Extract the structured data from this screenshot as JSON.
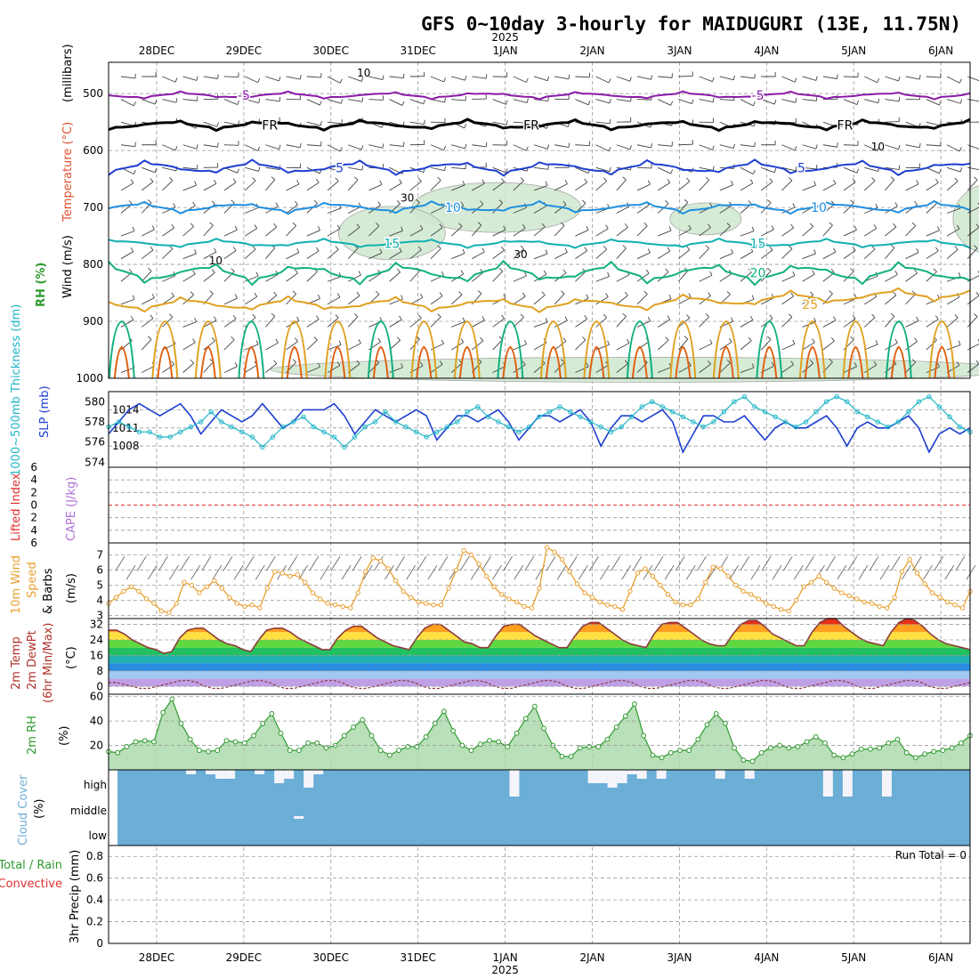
{
  "title": "GFS 0~10day 3-hourly for MAIDUGURI (13E, 11.75N)",
  "colors": {
    "temp_m5": "#8a1aa8",
    "temp_fr": "#000000",
    "temp_5": "#1e3fd0",
    "temp_10": "#1f8fe0",
    "temp_15": "#10b0b0",
    "temp_20": "#10b080",
    "temp_25": "#e0a020",
    "temp_30": "#e06010",
    "rh_fill": "#cfe8d0",
    "rh_line": "#999999",
    "slp": "#1e3fd0",
    "thickness": "#22b5c8",
    "cape": "#b070d8",
    "lifted": "#e03030",
    "wind10": "#e8a030",
    "barb": "#555555",
    "rh2m_line": "#2e9a2e",
    "cloud": "#6baed6",
    "precip_green": "#2e9a2e",
    "precip_red": "#e03030"
  },
  "chart_data": [
    {
      "type": "line",
      "panel": "upper-air",
      "year_label": "2025",
      "top_dates": [
        "28DEC",
        "29DEC",
        "30DEC",
        "31DEC",
        "1JAN",
        "2JAN",
        "3JAN",
        "4JAN",
        "5JAN",
        "6JAN"
      ],
      "yticks": [
        500,
        600,
        700,
        800,
        900,
        1000
      ],
      "ylabel_parts": [
        {
          "text": "Wind (m/s)",
          "color": "#000000"
        },
        {
          "text": "Temperature (°C)",
          "color": "#e05030"
        },
        {
          "text": "(millibars)",
          "color": "#000000"
        },
        {
          "text": "RH (%)",
          "color": "#2e9a2e"
        }
      ],
      "ylim": [
        1000,
        445
      ],
      "isotherms": [
        {
          "name": "-5",
          "label": "-5",
          "base_p": 503,
          "amp": 5,
          "color": "#8a1aa8",
          "labels_at": [
            1,
            6.9
          ]
        },
        {
          "name": "FR",
          "label": "FR",
          "base_p": 555,
          "amp": 7,
          "color": "#000000",
          "labels_at": [
            1.3,
            4.3,
            7.9
          ]
        },
        {
          "name": "5",
          "label": "5",
          "base_p": 630,
          "amp": 10,
          "color": "#1e3fd0",
          "labels_at": [
            2.1,
            7.4
          ]
        },
        {
          "name": "10",
          "label": "10",
          "base_p": 700,
          "amp": 8,
          "color": "#1f8fe0",
          "labels_at": [
            3.4,
            7.6
          ]
        },
        {
          "name": "15",
          "label": "15",
          "base_p": 763,
          "amp": 6,
          "color": "#10b0b0",
          "labels_at": [
            2.7,
            6.9
          ]
        },
        {
          "name": "20",
          "label": "20",
          "base_p": 815,
          "amp": 15,
          "color": "#10b080",
          "labels_at": [
            6.9
          ]
        },
        {
          "name": "25",
          "label": "25",
          "base_p": 870,
          "amp": 10,
          "color": "#e0a020",
          "labels_at": [
            7.5
          ]
        }
      ],
      "rh_labels": [
        {
          "text": "30",
          "x": 2.8,
          "p": 690
        },
        {
          "text": "30",
          "x": 4.1,
          "p": 789
        },
        {
          "text": "10",
          "x": 0.6,
          "p": 800
        },
        {
          "text": "10",
          "x": 2.3,
          "p": 470
        },
        {
          "text": "10",
          "x": 8.2,
          "p": 600
        },
        {
          "text": "30",
          "x": 9.8,
          "p": 630
        }
      ]
    },
    {
      "type": "line",
      "panel": "slp-thickness",
      "left_ticks": [
        580,
        578,
        576,
        574
      ],
      "left_label": "1000~500mb Thickness (dm)",
      "right_ticks": [
        1014,
        1011,
        1008
      ],
      "right_label": "SLP (mb)",
      "slp_ylim": [
        1004.5,
        1017
      ],
      "thick_ylim": [
        573.5,
        581
      ],
      "slp_values": [
        1010,
        1012,
        1014,
        1015,
        1014,
        1013,
        1014,
        1015,
        1013,
        1010,
        1012,
        1014,
        1013,
        1012,
        1013,
        1015,
        1013,
        1011,
        1012,
        1014,
        1014,
        1014,
        1015,
        1013,
        1010,
        1012,
        1014,
        1013,
        1012,
        1013,
        1014,
        1013,
        1009,
        1011,
        1013,
        1013,
        1012,
        1013,
        1014,
        1012,
        1009,
        1011,
        1013,
        1013,
        1012,
        1013,
        1014,
        1012,
        1008,
        1011,
        1013,
        1013,
        1012,
        1013,
        1014,
        1012,
        1007,
        1010,
        1013,
        1013,
        1012,
        1012,
        1013,
        1011,
        1009,
        1011,
        1012,
        1011,
        1011,
        1012,
        1013,
        1011,
        1008,
        1011,
        1012,
        1011,
        1011,
        1012,
        1013,
        1011,
        1007,
        1010,
        1011,
        1010,
        1011
      ],
      "thickness_values": [
        577.5,
        578,
        577.5,
        577,
        577,
        576.5,
        576.5,
        577,
        577.5,
        578,
        579,
        578,
        577.5,
        577,
        576.5,
        575.5,
        576.5,
        577.5,
        578,
        578.5,
        577.5,
        577,
        576.5,
        575.5,
        576.5,
        577.5,
        578,
        579,
        578,
        577.5,
        577,
        576.5,
        577,
        577.5,
        578,
        579,
        579.5,
        578.5,
        578,
        577.5,
        577,
        577.5,
        578.5,
        579,
        579.5,
        579,
        578.5,
        578,
        577.5,
        577,
        577.5,
        578.5,
        579.5,
        580,
        579.5,
        579,
        578.5,
        578,
        577.5,
        578,
        579,
        580,
        580.5,
        579.5,
        579,
        578.5,
        578,
        577.5,
        578,
        579,
        580,
        580.5,
        580,
        579,
        578.5,
        578,
        577.5,
        578,
        579,
        580,
        580.5,
        579.5,
        578.5,
        577.5,
        577
      ]
    },
    {
      "type": "line",
      "panel": "cape-lifted",
      "left_ticks": [
        6,
        4,
        2,
        0,
        2,
        4,
        6
      ],
      "left_label_lifted": "Lifted Index",
      "left_label_cape": "CAPE (J/kg)",
      "ylim": [
        -6,
        6
      ],
      "lifted_index_values": [],
      "cape_values": []
    },
    {
      "type": "line",
      "panel": "wind10m",
      "left_ticks": [
        7,
        6,
        5,
        4,
        3
      ],
      "label_a": "10m Wind",
      "label_b": "Speed",
      "label_c": "& Barbs",
      "units": "(m/s)",
      "ylim": [
        2.8,
        7.8
      ],
      "values": [
        3.8,
        4.2,
        4.6,
        4.9,
        4.6,
        4.1,
        3.8,
        3.3,
        3.2,
        3.8,
        5.2,
        5.0,
        4.5,
        4.9,
        5.3,
        4.8,
        4.2,
        3.8,
        3.6,
        3.7,
        3.5,
        4.8,
        5.9,
        5.8,
        5.6,
        5.7,
        5.2,
        4.5,
        4.1,
        3.8,
        3.7,
        3.6,
        3.5,
        4.5,
        5.9,
        6.8,
        6.6,
        6.1,
        5.3,
        4.6,
        4.2,
        3.9,
        3.8,
        3.7,
        3.7,
        4.8,
        6.0,
        7.3,
        7.0,
        6.4,
        5.6,
        4.9,
        4.4,
        4.1,
        3.9,
        3.6,
        3.5,
        4.8,
        7.5,
        7.2,
        6.7,
        5.9,
        5.1,
        4.5,
        4.2,
        3.9,
        3.7,
        3.6,
        3.4,
        4.6,
        5.8,
        6.1,
        5.6,
        5.0,
        4.4,
        3.9,
        3.7,
        3.7,
        4.1,
        5.2,
        6.2,
        6.1,
        5.6,
        5.0,
        4.6,
        4.4,
        4.1,
        3.8,
        3.6,
        3.4,
        3.3,
        4.0,
        4.9,
        5.2,
        5.6,
        5.2,
        4.8,
        4.5,
        4.3,
        4.1,
        3.9,
        3.8,
        3.6,
        3.5,
        4.2,
        5.9,
        6.7,
        5.8,
        5.1,
        4.5,
        4.2,
        3.9,
        3.7,
        3.5,
        4.6
      ]
    },
    {
      "type": "area",
      "panel": "temp2m",
      "left_ticks": [
        32,
        24,
        16,
        8,
        0
      ],
      "label_a": "2m Temp",
      "label_b": "2m DewPt",
      "label_c": "(6hr Min/Max)",
      "units": "(°C)",
      "ylim": [
        -4,
        35
      ],
      "temp_values": [
        29,
        29,
        27,
        24,
        22,
        20,
        19,
        17,
        18,
        25,
        29,
        30,
        30,
        27,
        24,
        22,
        21,
        19,
        18,
        24,
        29,
        30,
        30,
        28,
        25,
        23,
        21,
        19,
        19,
        25,
        29,
        31,
        31,
        28,
        25,
        23,
        21,
        20,
        19,
        25,
        30,
        32,
        32,
        29,
        26,
        23,
        22,
        20,
        20,
        26,
        31,
        32,
        32,
        29,
        26,
        24,
        22,
        20,
        20,
        26,
        31,
        33,
        33,
        30,
        27,
        24,
        22,
        21,
        20,
        27,
        32,
        33,
        33,
        30,
        27,
        24,
        22,
        21,
        21,
        27,
        32,
        34,
        34,
        31,
        27,
        25,
        23,
        21,
        21,
        28,
        33,
        35,
        35,
        31,
        28,
        25,
        23,
        22,
        21,
        28,
        33,
        35,
        34,
        31,
        27,
        24,
        22,
        21,
        20,
        19
      ],
      "dewpt_values": [
        2,
        2,
        1,
        0,
        -1,
        -1,
        0,
        1,
        2,
        3,
        3,
        2,
        0,
        -1,
        -1,
        0,
        1,
        2,
        3,
        3,
        2,
        0,
        -1,
        -1,
        0,
        1,
        2,
        3,
        3,
        2,
        0,
        -1,
        -1,
        0,
        1,
        2,
        3,
        3,
        2,
        0,
        -1,
        -1,
        0,
        1,
        2,
        3,
        3,
        2,
        0,
        -1,
        -1,
        0,
        1,
        2,
        3,
        3,
        2,
        0,
        -1,
        -1,
        0,
        1,
        2,
        3,
        3,
        2,
        0,
        -1,
        -1,
        0,
        1,
        2,
        3,
        3,
        2,
        0,
        -1,
        -1,
        0,
        1,
        2,
        3,
        3,
        2,
        0,
        -1,
        -1,
        0,
        1,
        2,
        3,
        3,
        2,
        0,
        -1,
        -1,
        0,
        1,
        2,
        3,
        3,
        2,
        0,
        -1,
        -1,
        0,
        1,
        2
      ],
      "bands": [
        [
          0,
          4,
          "#bfa0e6"
        ],
        [
          4,
          8,
          "#a0c8f0"
        ],
        [
          8,
          12,
          "#2a8ce0"
        ],
        [
          12,
          16,
          "#22b0b0"
        ],
        [
          16,
          20,
          "#22c060"
        ],
        [
          20,
          24,
          "#60d840"
        ],
        [
          24,
          28,
          "#ffe040"
        ],
        [
          28,
          32,
          "#ffa020"
        ],
        [
          32,
          40,
          "#e83018"
        ]
      ]
    },
    {
      "type": "area",
      "panel": "rh2m",
      "left_ticks": [
        60,
        40,
        20
      ],
      "label": "2m RH",
      "units": "(%)",
      "ylim": [
        0,
        62
      ],
      "values": [
        15,
        14,
        19,
        23,
        24,
        23,
        47,
        58,
        38,
        25,
        16,
        15,
        16,
        24,
        23,
        22,
        28,
        38,
        46,
        30,
        16,
        16,
        22,
        22,
        18,
        20,
        28,
        35,
        41,
        28,
        16,
        12,
        16,
        19,
        19,
        27,
        38,
        48,
        32,
        20,
        16,
        21,
        24,
        23,
        19,
        30,
        42,
        52,
        34,
        20,
        11,
        11,
        18,
        19,
        19,
        25,
        35,
        44,
        54,
        28,
        12,
        10,
        14,
        16,
        16,
        25,
        37,
        46,
        38,
        18,
        8,
        7,
        14,
        18,
        20,
        18,
        19,
        23,
        27,
        22,
        12,
        10,
        13,
        17,
        17,
        18,
        22,
        25,
        14,
        10,
        13,
        15,
        16,
        18,
        22,
        28
      ]
    },
    {
      "type": "bar",
      "panel": "cloud",
      "levels": [
        "high",
        "middle",
        "low"
      ],
      "label": "Cloud Cover",
      "units": "(%)",
      "high_gaps": [
        0,
        0,
        0,
        0,
        0,
        0,
        0,
        5,
        0,
        5,
        10,
        10,
        0,
        0,
        5,
        0,
        15,
        10,
        0,
        20,
        5,
        0,
        0,
        0,
        0,
        0,
        0,
        0,
        0,
        0,
        0,
        0,
        0,
        0,
        0,
        0,
        0,
        0,
        0,
        0,
        30,
        0,
        0,
        0,
        0,
        0,
        0,
        0,
        15,
        15,
        20,
        15,
        5,
        10,
        0,
        10,
        0,
        0,
        0,
        0,
        0,
        10,
        0,
        0,
        10,
        0,
        0,
        0,
        0,
        0,
        0,
        0,
        30,
        0,
        30,
        0,
        0,
        0,
        30,
        0,
        0,
        0,
        0,
        0,
        0,
        0,
        0
      ],
      "middle_marks": [
        18
      ]
    },
    {
      "type": "bar",
      "panel": "precip",
      "left_ticks": [
        "0.8",
        "0.6",
        "0.4",
        "0.2",
        "0"
      ],
      "label_a": "Total / Rain",
      "label_b": "Convective",
      "label_c": "3hr Precip (mm)",
      "ylim": [
        0,
        0.9
      ],
      "run_total": "Run Total = 0",
      "values": [],
      "bottom_dates": [
        "28DEC",
        "29DEC",
        "30DEC",
        "31DEC",
        "1JAN",
        "2JAN",
        "3JAN",
        "4JAN",
        "5JAN",
        "6JAN"
      ],
      "year_label": "2025"
    }
  ]
}
